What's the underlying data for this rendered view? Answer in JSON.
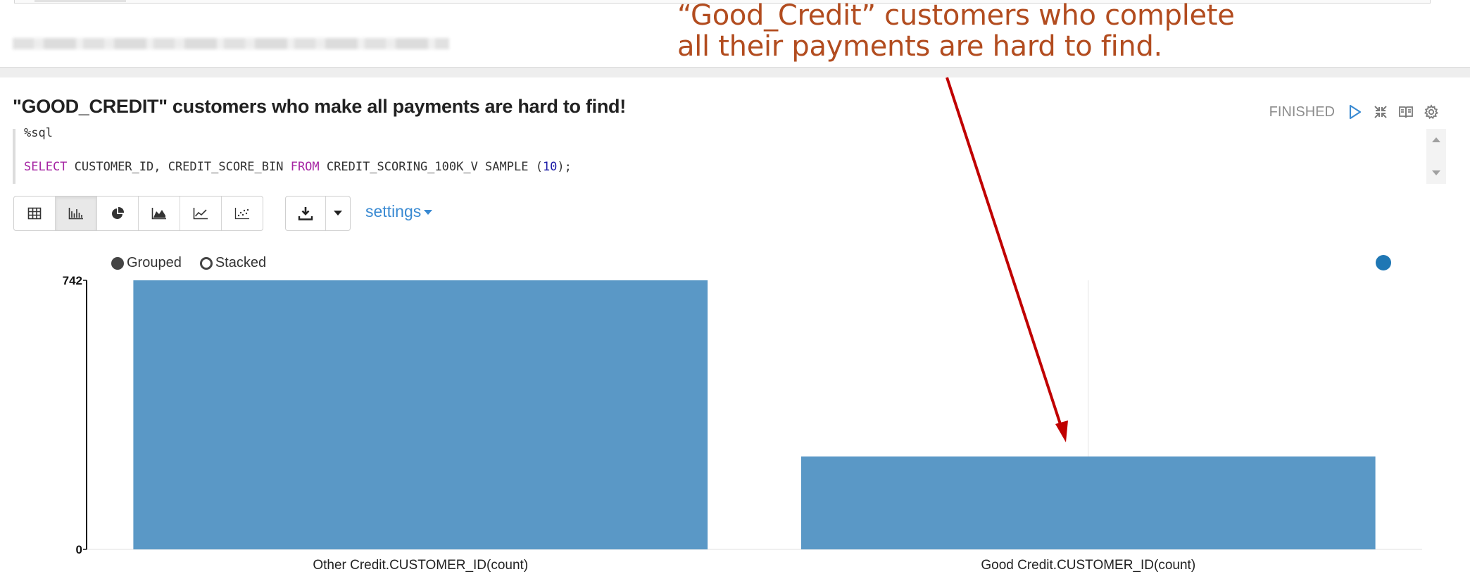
{
  "annotation": {
    "line1": "“Good_Credit” customers who complete",
    "line2": "all their payments are hard to find.",
    "color": "#b24c1f",
    "arrow_color": "#c00000"
  },
  "paragraph": {
    "title": "\"GOOD_CREDIT\" customers who make all payments are hard to find!",
    "status": "FINISHED",
    "code": {
      "line1": "%sql",
      "line2_parts": [
        {
          "t": "SELECT",
          "c": "kw"
        },
        {
          "t": " CUSTOMER_ID, CREDIT_SCORE_BIN ",
          "c": ""
        },
        {
          "t": "FROM",
          "c": "kw"
        },
        {
          "t": " CREDIT_SCORING_100K_V SAMPLE (",
          "c": ""
        },
        {
          "t": "10",
          "c": "num"
        },
        {
          "t": ");",
          "c": ""
        }
      ]
    },
    "icons": [
      "run-icon",
      "collapse-icon",
      "book-icon",
      "gear-icon"
    ]
  },
  "toolbar": {
    "viz_buttons": [
      "table-icon",
      "bar-chart-icon",
      "pie-chart-icon",
      "area-chart-icon",
      "line-chart-icon",
      "scatter-chart-icon"
    ],
    "active": "bar-chart-icon",
    "settings_label": "settings"
  },
  "chart_options": {
    "grouped_label": "Grouped",
    "stacked_label": "Stacked",
    "selected": "Grouped"
  },
  "chart_data": {
    "type": "bar",
    "categories": [
      "Other Credit.CUSTOMER_ID(count)",
      "Good Credit.CUSTOMER_ID(count)"
    ],
    "values": [
      742,
      256
    ],
    "ylim": [
      0,
      742
    ],
    "yticks": [
      0,
      742
    ],
    "bar_color": "#5a98c6",
    "legend_color": "#1f77b4"
  }
}
